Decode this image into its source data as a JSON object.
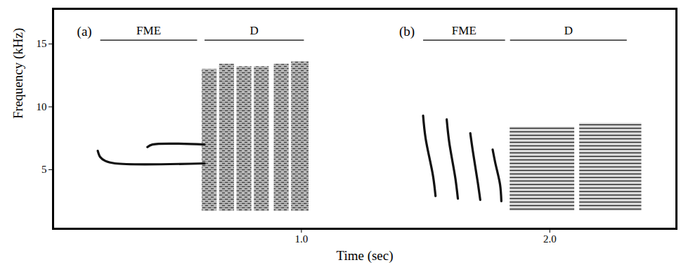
{
  "chart_data": {
    "type": "spectrogram",
    "xlabel": "Time (sec)",
    "ylabel": "Frequency (kHz)",
    "xlim": [
      0,
      2.51
    ],
    "ylim": [
      0.3,
      17.8
    ],
    "xticks": [
      1,
      2
    ],
    "yticks": [
      5,
      10,
      15
    ],
    "panels": [
      {
        "label": "(a)",
        "segments": [
          {
            "label": "FME",
            "start": 0.19,
            "end": 0.58,
            "freq": 15.3
          },
          {
            "label": "D",
            "start": 0.61,
            "end": 1.01,
            "freq": 15.3
          }
        ],
        "notes": [
          {
            "type": "tonal",
            "points": [
              [
                0.18,
                6.5
              ],
              [
                0.19,
                6.0
              ],
              [
                0.21,
                5.7
              ],
              [
                0.25,
                5.5
              ],
              [
                0.61,
                5.5
              ]
            ]
          },
          {
            "type": "tonal",
            "points": [
              [
                0.38,
                6.8
              ],
              [
                0.4,
                7.0
              ],
              [
                0.61,
                7.0
              ]
            ]
          },
          {
            "type": "broadband",
            "start": 0.6,
            "end": 0.66,
            "low": 1.7,
            "high": 13.0
          },
          {
            "type": "broadband",
            "start": 0.67,
            "end": 0.73,
            "low": 1.7,
            "high": 13.4
          },
          {
            "type": "broadband",
            "start": 0.74,
            "end": 0.8,
            "low": 1.7,
            "high": 13.2
          },
          {
            "type": "broadband",
            "start": 0.81,
            "end": 0.87,
            "low": 1.7,
            "high": 13.2
          },
          {
            "type": "broadband",
            "start": 0.89,
            "end": 0.95,
            "low": 1.7,
            "high": 13.4
          },
          {
            "type": "broadband",
            "start": 0.96,
            "end": 1.03,
            "low": 1.7,
            "high": 13.6
          }
        ]
      },
      {
        "label": "(b)",
        "segments": [
          {
            "label": "FME",
            "start": 1.49,
            "end": 1.82,
            "freq": 15.3
          },
          {
            "label": "D",
            "start": 1.84,
            "end": 2.31,
            "freq": 15.3
          }
        ],
        "notes": [
          {
            "type": "tonal",
            "points": [
              [
                1.49,
                9.3
              ],
              [
                1.5,
                7.5
              ],
              [
                1.53,
                4.5
              ],
              [
                1.54,
                2.9
              ]
            ]
          },
          {
            "type": "tonal",
            "points": [
              [
                1.585,
                9.0
              ],
              [
                1.595,
                7.2
              ],
              [
                1.62,
                4.3
              ],
              [
                1.63,
                2.7
              ]
            ]
          },
          {
            "type": "tonal",
            "points": [
              [
                1.68,
                7.9
              ],
              [
                1.69,
                6.5
              ],
              [
                1.71,
                4.0
              ],
              [
                1.72,
                2.6
              ]
            ]
          },
          {
            "type": "tonal",
            "points": [
              [
                1.77,
                6.6
              ],
              [
                1.78,
                5.6
              ],
              [
                1.8,
                3.8
              ],
              [
                1.805,
                2.5
              ]
            ]
          },
          {
            "type": "harmonic",
            "start": 1.84,
            "end": 2.1,
            "low": 1.7,
            "high": 8.4
          },
          {
            "type": "harmonic",
            "start": 2.12,
            "end": 2.37,
            "low": 1.7,
            "high": 8.7
          }
        ]
      }
    ]
  }
}
